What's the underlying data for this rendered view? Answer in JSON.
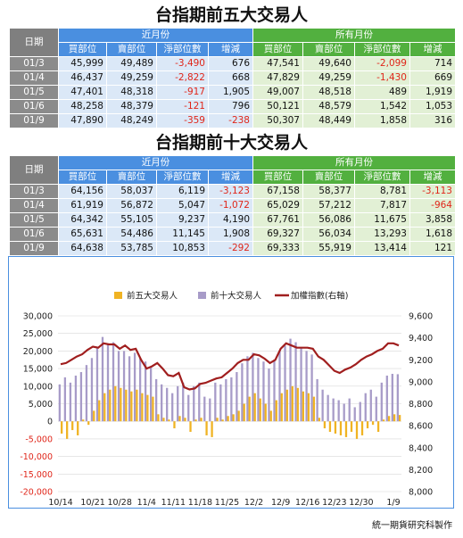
{
  "table1": {
    "title": "台指期前五大交易人",
    "date_header": "日期",
    "near_group": "近月份",
    "all_group": "所有月份",
    "col_headers": [
      "買部位",
      "賣部位",
      "淨部位數",
      "增減",
      "買部位",
      "賣部位",
      "淨部位數",
      "增減"
    ],
    "rows": [
      {
        "date": "01/3",
        "near": [
          "45,999",
          "49,489",
          "-3,490",
          "676"
        ],
        "all": [
          "47,541",
          "49,640",
          "-2,099",
          "714"
        ]
      },
      {
        "date": "01/4",
        "near": [
          "46,437",
          "49,259",
          "-2,822",
          "668"
        ],
        "all": [
          "47,829",
          "49,259",
          "-1,430",
          "669"
        ]
      },
      {
        "date": "01/5",
        "near": [
          "47,401",
          "48,318",
          "-917",
          "1,905"
        ],
        "all": [
          "49,007",
          "48,518",
          "489",
          "1,919"
        ]
      },
      {
        "date": "01/6",
        "near": [
          "48,258",
          "48,379",
          "-121",
          "796"
        ],
        "all": [
          "50,121",
          "48,579",
          "1,542",
          "1,053"
        ]
      },
      {
        "date": "01/9",
        "near": [
          "47,890",
          "48,249",
          "-359",
          "-238"
        ],
        "all": [
          "50,307",
          "48,449",
          "1,858",
          "316"
        ]
      }
    ]
  },
  "table2": {
    "title": "台指期前十大交易人",
    "date_header": "日期",
    "near_group": "近月份",
    "all_group": "所有月份",
    "col_headers": [
      "買部位",
      "賣部位",
      "淨部位數",
      "增減",
      "買部位",
      "賣部位",
      "淨部位數",
      "增減"
    ],
    "rows": [
      {
        "date": "01/3",
        "near": [
          "64,156",
          "58,037",
          "6,119",
          "-3,123"
        ],
        "all": [
          "67,158",
          "58,377",
          "8,781",
          "-3,113"
        ]
      },
      {
        "date": "01/4",
        "near": [
          "61,919",
          "56,872",
          "5,047",
          "-1,072"
        ],
        "all": [
          "65,029",
          "57,212",
          "7,817",
          "-964"
        ]
      },
      {
        "date": "01/5",
        "near": [
          "64,342",
          "55,105",
          "9,237",
          "4,190"
        ],
        "all": [
          "67,761",
          "56,086",
          "11,675",
          "3,858"
        ]
      },
      {
        "date": "01/6",
        "near": [
          "65,631",
          "54,486",
          "11,145",
          "1,908"
        ],
        "all": [
          "69,327",
          "56,034",
          "13,293",
          "1,618"
        ]
      },
      {
        "date": "01/9",
        "near": [
          "64,638",
          "53,785",
          "10,853",
          "-292"
        ],
        "all": [
          "69,333",
          "55,919",
          "13,414",
          "121"
        ]
      }
    ]
  },
  "colors": {
    "top5": "#f0b323",
    "top10": "#a79bc8",
    "index": "#a01e1e",
    "neg": "#e0261a"
  },
  "chart_data": {
    "type": "bar",
    "legend": [
      "前五大交易人",
      "前十大交易人",
      "加權指數(右軸)"
    ],
    "x_tick_labels": [
      "10/14",
      "10/21",
      "10/28",
      "11/4",
      "11/11",
      "11/18",
      "11/25",
      "12/2",
      "12/9",
      "12/16",
      "12/23",
      "12/30",
      "1/9"
    ],
    "tick_index": [
      0,
      6,
      11,
      16,
      21,
      26,
      31,
      36,
      41,
      46,
      51,
      56,
      62
    ],
    "y_left_ticks": [
      "30,000",
      "25,000",
      "20,000",
      "15,000",
      "10,000",
      "5,000",
      "0",
      "-5,000",
      "-10,000",
      "-15,000",
      "-20,000"
    ],
    "y_right_ticks": [
      "9,600",
      "9,400",
      "9,200",
      "9,000",
      "8,800",
      "8,600",
      "8,400",
      "8,200",
      "8,000"
    ],
    "ylim_left": [
      -20000,
      30000
    ],
    "ylim_right": [
      8000,
      9600
    ],
    "series": [
      {
        "name": "前五大交易人",
        "values": [
          -3500,
          -5000,
          -2500,
          -4000,
          500,
          -1000,
          3000,
          6000,
          8000,
          9000,
          10000,
          9500,
          9000,
          8500,
          9000,
          8000,
          7500,
          7000,
          2000,
          1000,
          500,
          -2000,
          1500,
          1000,
          -3000,
          500,
          1000,
          -4000,
          -4500,
          1000,
          500,
          1500,
          2000,
          3000,
          5000,
          7000,
          8000,
          6500,
          5000,
          3000,
          6000,
          8000,
          9000,
          10000,
          9500,
          8500,
          8000,
          7000,
          1000,
          -2000,
          -3000,
          -3500,
          -4000,
          -4500,
          -3000,
          -5000,
          -4000,
          -2000,
          -1000,
          -3000,
          500,
          1500,
          2000,
          1800
        ]
      },
      {
        "name": "前十大交易人",
        "values": [
          10500,
          12500,
          11000,
          13000,
          14000,
          16000,
          18000,
          21000,
          24000,
          22000,
          22500,
          20000,
          20000,
          18500,
          19500,
          18000,
          17000,
          15500,
          12000,
          10500,
          9500,
          8000,
          10000,
          11000,
          7500,
          10000,
          11000,
          7000,
          6500,
          11000,
          10500,
          12000,
          12500,
          14000,
          16500,
          18500,
          19500,
          18000,
          17000,
          15000,
          17500,
          20000,
          21500,
          23500,
          22500,
          21000,
          20000,
          19000,
          12000,
          9000,
          7500,
          6500,
          6000,
          5000,
          6500,
          4000,
          5500,
          8000,
          9000,
          7000,
          11000,
          13000,
          13500,
          13400
        ]
      },
      {
        "name": "加權指數(右軸)",
        "values": [
          9160,
          9170,
          9200,
          9230,
          9250,
          9290,
          9320,
          9310,
          9350,
          9340,
          9340,
          9300,
          9330,
          9290,
          9300,
          9200,
          9120,
          9140,
          9170,
          9120,
          9060,
          9050,
          9080,
          8950,
          8930,
          8940,
          8980,
          8990,
          9010,
          9030,
          9040,
          9080,
          9120,
          9170,
          9200,
          9200,
          9250,
          9240,
          9210,
          9170,
          9200,
          9300,
          9350,
          9330,
          9310,
          9310,
          9310,
          9300,
          9230,
          9200,
          9150,
          9100,
          9080,
          9110,
          9130,
          9160,
          9200,
          9230,
          9250,
          9280,
          9300,
          9350,
          9350,
          9330
        ]
      }
    ]
  },
  "footer": "統一期貨研究科製作"
}
